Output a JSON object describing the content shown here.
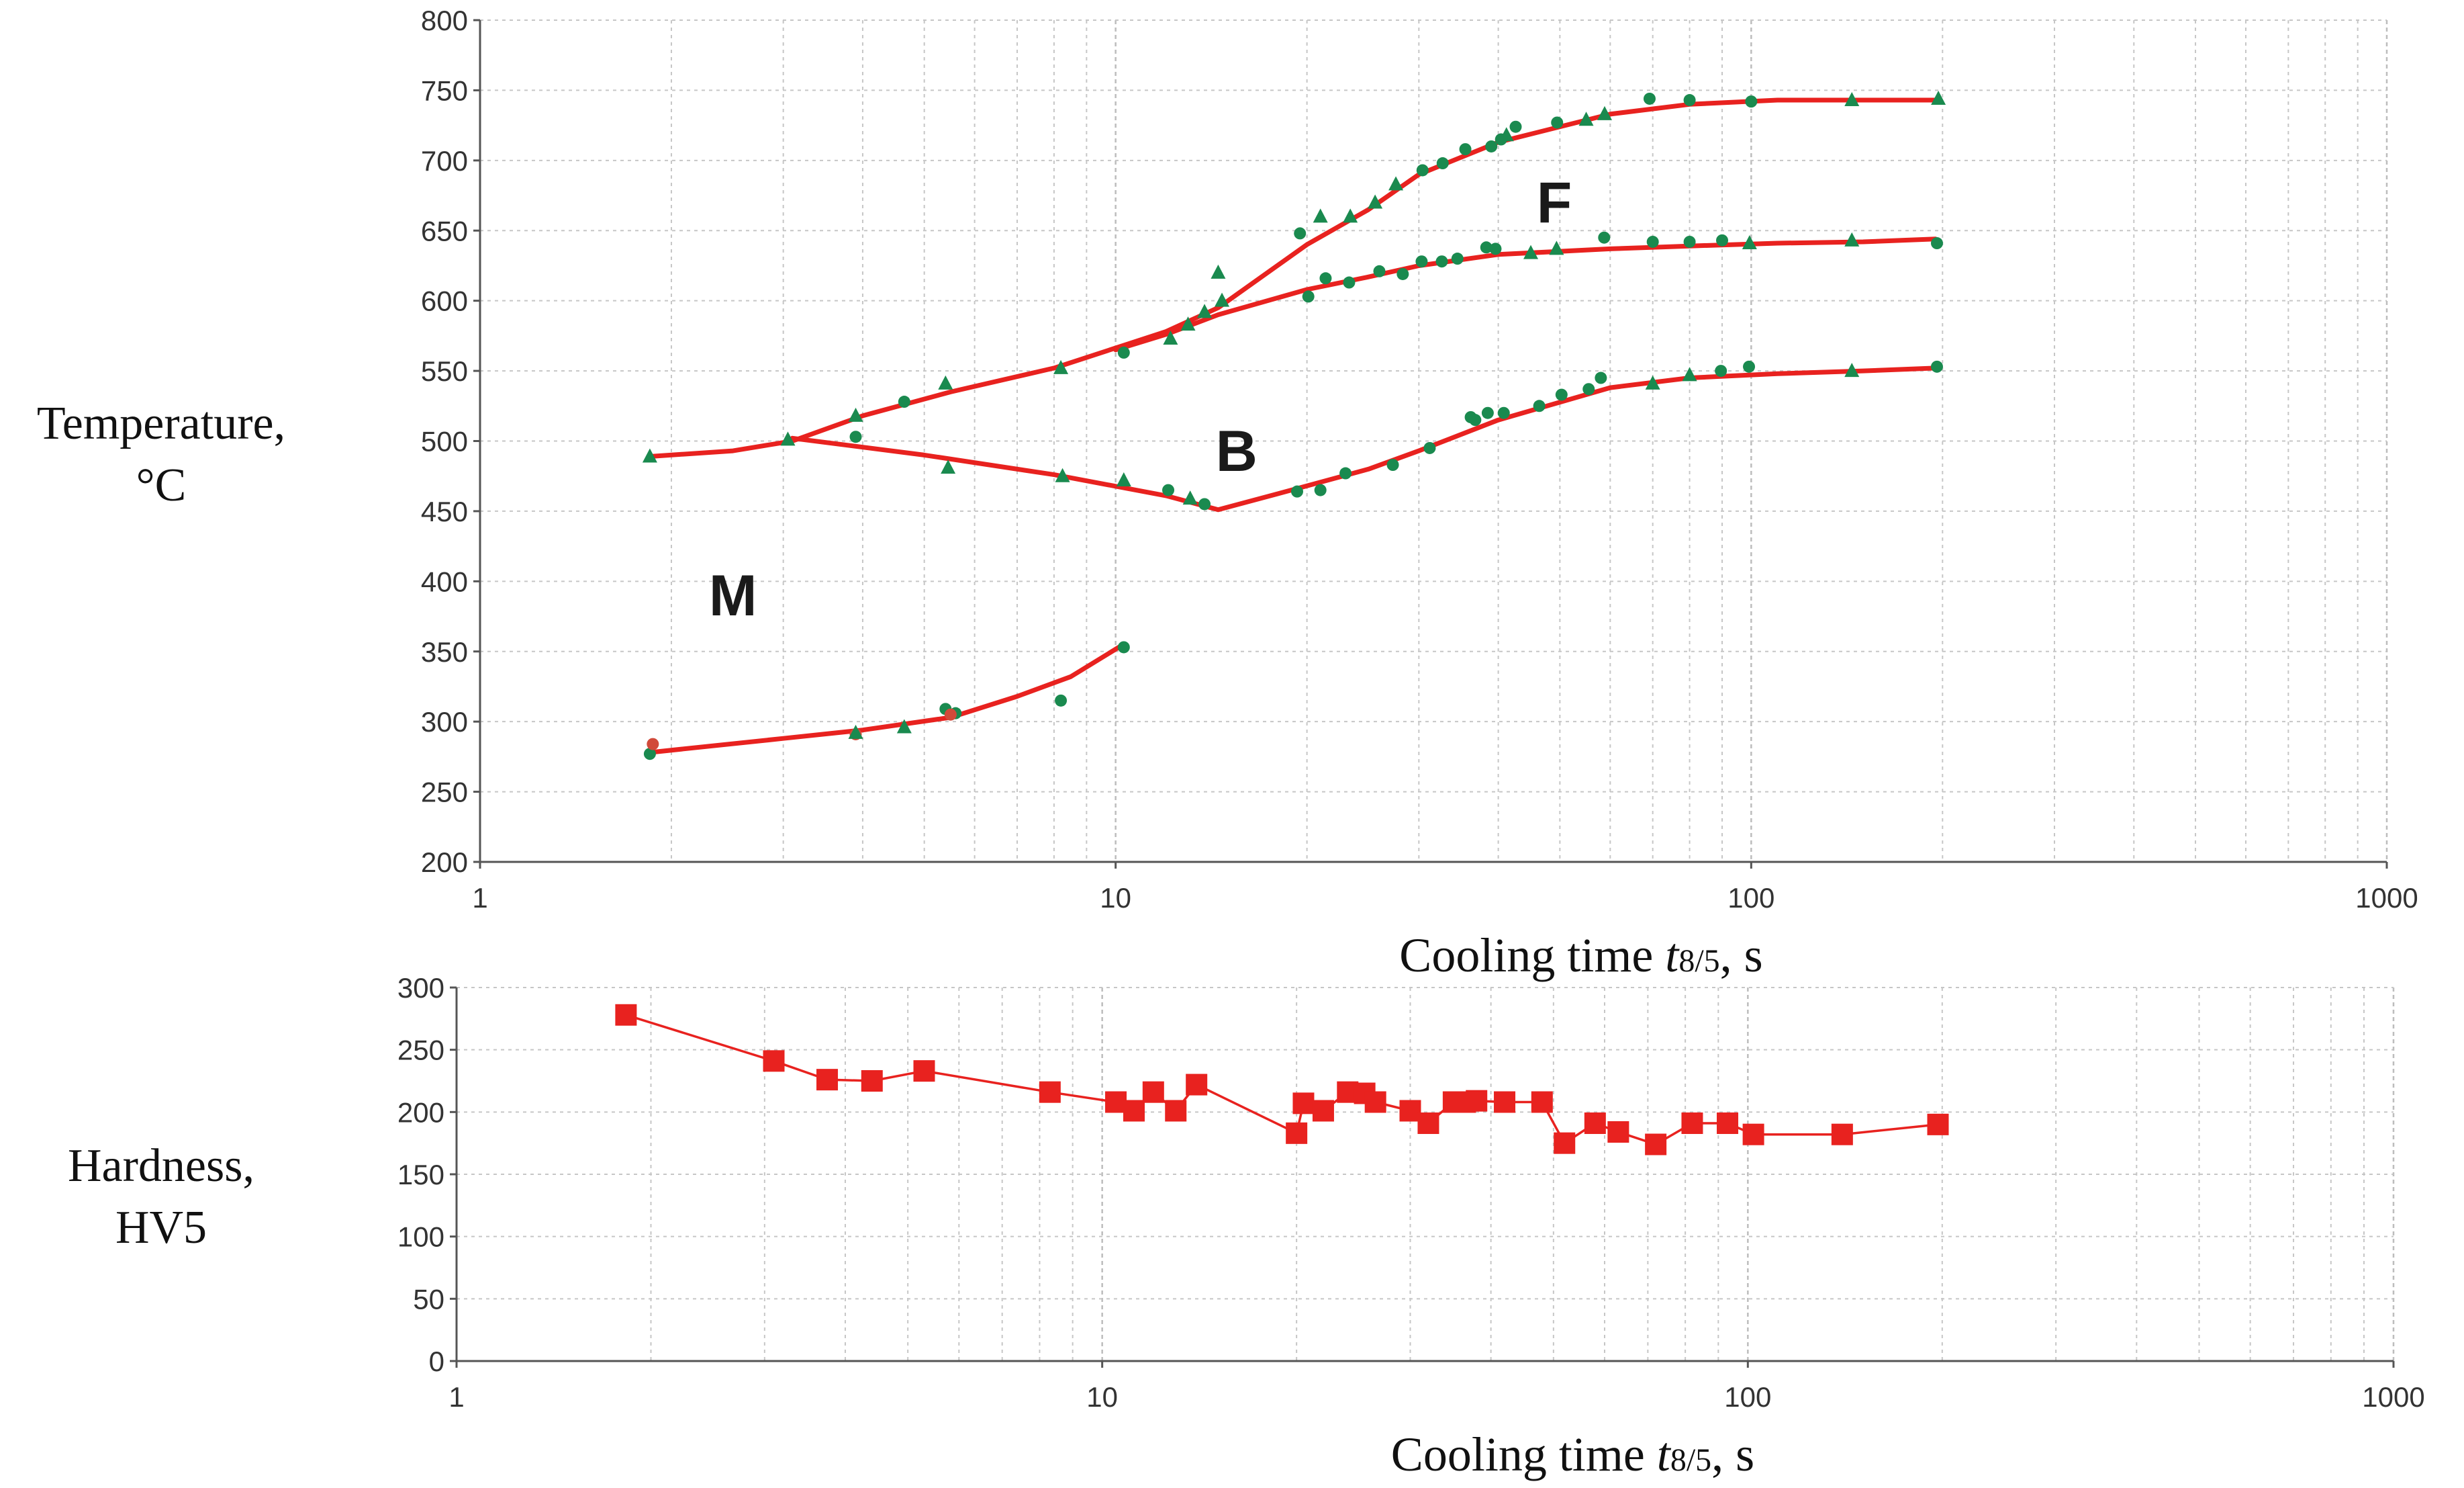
{
  "chart_data": [
    {
      "type": "line",
      "name": "cct-diagram",
      "ylabel_lines": [
        "Temperature,",
        "°C"
      ],
      "xlabel_prefix": "Cooling time ",
      "xlabel_var": "t",
      "xlabel_sub": "8/5",
      "xlabel_suffix": ", s",
      "x_scale": "log",
      "xlim": [
        1,
        1000
      ],
      "ylim": [
        200,
        800
      ],
      "x_ticks": [
        1,
        10,
        100,
        1000
      ],
      "x_tick_labels": [
        "1",
        "10",
        "100",
        "1000"
      ],
      "y_ticks": [
        200,
        250,
        300,
        350,
        400,
        450,
        500,
        550,
        600,
        650,
        700,
        750,
        800
      ],
      "y_tick_labels": [
        "200",
        "250",
        "300",
        "350",
        "400",
        "450",
        "500",
        "550",
        "600",
        "650",
        "700",
        "750",
        "800"
      ],
      "grid": true,
      "region_labels": [
        {
          "text": "M",
          "x": 2.5,
          "y": 390
        },
        {
          "text": "B",
          "x": 15.5,
          "y": 493
        },
        {
          "text": "F",
          "x": 49,
          "y": 670
        }
      ],
      "series": [
        {
          "name": "Ferrite start",
          "color": "#e8221f",
          "x": [
            1.85,
            2.5,
            3.1,
            4,
            5.5,
            8,
            12,
            14.5,
            20,
            25,
            30,
            40,
            60,
            80,
            110,
            150,
            195
          ],
          "y": [
            489,
            493,
            500,
            518,
            535,
            552,
            578,
            595,
            640,
            665,
            690,
            713,
            733,
            740,
            743,
            743,
            743
          ]
        },
        {
          "name": "Bainite start",
          "color": "#e8221f",
          "x": [
            10,
            12,
            14.5,
            20,
            25,
            30,
            40,
            60,
            80,
            110,
            150,
            195
          ],
          "y": [
            565,
            576,
            590,
            608,
            617,
            625,
            633,
            637,
            639,
            641,
            642,
            644
          ]
        },
        {
          "name": "Bainite finish",
          "color": "#e8221f",
          "x": [
            3.1,
            5,
            8,
            12,
            14.5,
            20,
            25,
            30,
            40,
            60,
            80,
            110,
            150,
            195
          ],
          "y": [
            502,
            490,
            476,
            461,
            451,
            468,
            480,
            493,
            515,
            538,
            545,
            548,
            550,
            552
          ]
        },
        {
          "name": "Martensite start",
          "color": "#e8221f",
          "x": [
            1.85,
            3,
            4,
            5.5,
            7,
            8.5,
            10.2
          ],
          "y": [
            278,
            288,
            294,
            303,
            318,
            332,
            354
          ]
        }
      ],
      "measured_points": {
        "color": "#1a8a4f",
        "marker_color_alt": "#d14a3a",
        "circles": [
          [
            1.85,
            277
          ],
          [
            3.9,
            503
          ],
          [
            4.65,
            528
          ],
          [
            5.4,
            309
          ],
          [
            5.6,
            306
          ],
          [
            8.2,
            315
          ],
          [
            10.3,
            353
          ],
          [
            10.3,
            563
          ],
          [
            12.1,
            465
          ],
          [
            13.8,
            455
          ],
          [
            19.3,
            464
          ],
          [
            19.5,
            648
          ],
          [
            20.1,
            603
          ],
          [
            21,
            465
          ],
          [
            21.4,
            616
          ],
          [
            23.3,
            613
          ],
          [
            23,
            477
          ],
          [
            26,
            621
          ],
          [
            27.3,
            483
          ],
          [
            28.3,
            619
          ],
          [
            30.3,
            628
          ],
          [
            30.4,
            693
          ],
          [
            31.2,
            495
          ],
          [
            32.6,
            628
          ],
          [
            32.7,
            698
          ],
          [
            34.5,
            630
          ],
          [
            35.5,
            708
          ],
          [
            36.2,
            517
          ],
          [
            36.8,
            515
          ],
          [
            38.3,
            638
          ],
          [
            38.5,
            520
          ],
          [
            39,
            710
          ],
          [
            39.6,
            637
          ],
          [
            40.4,
            715
          ],
          [
            40.8,
            520
          ],
          [
            42.6,
            724
          ],
          [
            46.4,
            525
          ],
          [
            49.5,
            727
          ],
          [
            50.3,
            533
          ],
          [
            55.5,
            537
          ],
          [
            58,
            545
          ],
          [
            58.7,
            645
          ],
          [
            69.2,
            744
          ],
          [
            70,
            642
          ],
          [
            80,
            743
          ],
          [
            80,
            642
          ],
          [
            89.6,
            550
          ],
          [
            90,
            643
          ],
          [
            99.2,
            553
          ],
          [
            100,
            742
          ],
          [
            196,
            641
          ],
          [
            196,
            553
          ],
          [
            1.87,
            284
          ],
          [
            3.9,
            291
          ],
          [
            5.5,
            305
          ]
        ],
        "triangles": [
          [
            1.85,
            489
          ],
          [
            3.05,
            501
          ],
          [
            3.9,
            518
          ],
          [
            3.9,
            292
          ],
          [
            4.65,
            296
          ],
          [
            5.4,
            541
          ],
          [
            5.45,
            481
          ],
          [
            8.2,
            552
          ],
          [
            8.25,
            475
          ],
          [
            10.3,
            472
          ],
          [
            12.2,
            573
          ],
          [
            13,
            583
          ],
          [
            13.1,
            459
          ],
          [
            13.8,
            592
          ],
          [
            14.5,
            620
          ],
          [
            14.7,
            600
          ],
          [
            21,
            660
          ],
          [
            23.4,
            660
          ],
          [
            25.6,
            670
          ],
          [
            27.6,
            683
          ],
          [
            41.2,
            718
          ],
          [
            45,
            634
          ],
          [
            49.4,
            637
          ],
          [
            55,
            729
          ],
          [
            58.8,
            733
          ],
          [
            70,
            541
          ],
          [
            80,
            547
          ],
          [
            99.4,
            641
          ],
          [
            144,
            743
          ],
          [
            144,
            643
          ],
          [
            144,
            550
          ],
          [
            197,
            744
          ]
        ]
      }
    },
    {
      "type": "line",
      "name": "hardness",
      "ylabel_lines": [
        "Hardness,",
        "HV5"
      ],
      "xlabel_prefix": "Cooling time ",
      "xlabel_var": "t",
      "xlabel_sub": "8/5",
      "xlabel_suffix": ", s",
      "x_scale": "log",
      "xlim": [
        1,
        1000
      ],
      "ylim": [
        0,
        300
      ],
      "x_ticks": [
        1,
        10,
        100,
        1000
      ],
      "x_tick_labels": [
        "1",
        "10",
        "100",
        "1000"
      ],
      "y_ticks": [
        0,
        50,
        100,
        150,
        200,
        250,
        300
      ],
      "y_tick_labels": [
        "0",
        "50",
        "100",
        "150",
        "200",
        "250",
        "300"
      ],
      "grid": true,
      "series": [
        {
          "name": "Hardness HV5",
          "color": "#e8221f",
          "marker": "square",
          "x": [
            1.83,
            3.1,
            3.75,
            4.4,
            5.3,
            8.3,
            10.5,
            11.2,
            12,
            13,
            14,
            20,
            20.5,
            22,
            24,
            25.5,
            26.5,
            30,
            32,
            35,
            36.5,
            38,
            42,
            48,
            52,
            58,
            63,
            72,
            82,
            93,
            102,
            140,
            197
          ],
          "y": [
            278,
            241,
            226,
            225,
            233,
            216,
            208,
            201,
            216,
            201,
            222,
            183,
            207,
            201,
            216,
            215,
            208,
            201,
            191,
            208,
            208,
            209,
            208,
            208,
            175,
            191,
            184,
            174,
            191,
            191,
            182,
            182,
            190
          ]
        }
      ]
    }
  ]
}
